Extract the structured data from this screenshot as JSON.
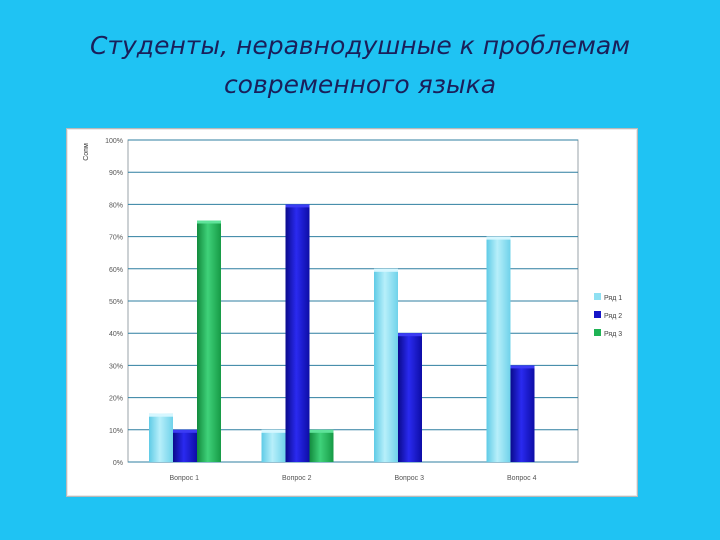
{
  "slide": {
    "title_line1": "Студенты,  неравнодушные к проблемам",
    "title_line2": "современного языка"
  },
  "colors": {
    "background": "#1fc3f3",
    "series": [
      "#8fe0f2",
      "#1515c8",
      "#1fb354"
    ]
  },
  "chart_data": {
    "type": "bar",
    "categories": [
      "Вопрос 1",
      "Вопрос 2",
      "Вопрос 3",
      "Вопрос 4"
    ],
    "series": [
      {
        "name": "Ряд 1",
        "values": [
          15,
          10,
          60,
          70
        ]
      },
      {
        "name": "Ряд 2",
        "values": [
          10,
          80,
          40,
          30
        ]
      },
      {
        "name": "Ряд 3",
        "values": [
          75,
          10,
          null,
          null
        ]
      }
    ],
    "yticks": [
      "0%",
      "10%",
      "20%",
      "30%",
      "40%",
      "50%",
      "60%",
      "70%",
      "80%",
      "90%",
      "100%"
    ],
    "ylim": [
      0,
      100
    ],
    "ylabel": "Сопм",
    "grid": true,
    "legend": "right"
  }
}
